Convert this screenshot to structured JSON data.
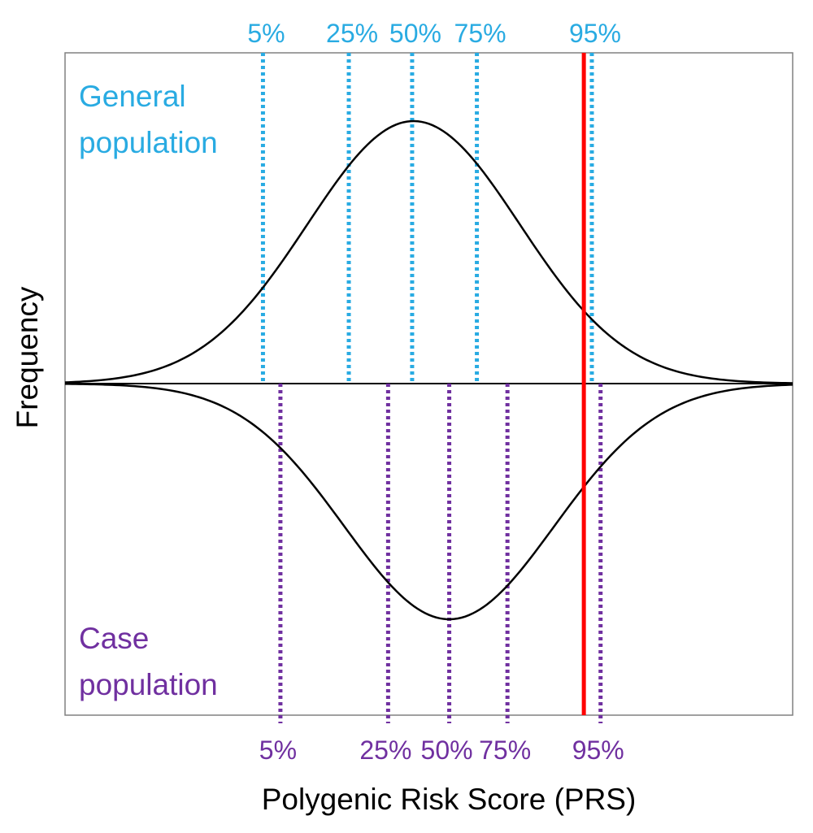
{
  "chart_data": {
    "type": "line",
    "xlabel": "Polygenic Risk Score (PRS)",
    "ylabel": "Frequency",
    "colors": {
      "general": "#29ABE2",
      "case": "#7030A0",
      "curve": "#000000",
      "threshold": "#FF0000",
      "frame": "#808080"
    },
    "xlim": [
      0,
      100
    ],
    "series": [
      {
        "name": "General population",
        "label_lines": [
          "General",
          "population"
        ],
        "mean": 47.9,
        "sd": 14.6,
        "direction": "up",
        "percentiles": [
          {
            "label": "5%",
            "x": 27.2
          },
          {
            "label": "25%",
            "x": 39.0
          },
          {
            "label": "50%",
            "x": 47.7
          },
          {
            "label": "75%",
            "x": 56.6
          },
          {
            "label": "95%",
            "x": 72.4
          }
        ]
      },
      {
        "name": "Case population",
        "label_lines": [
          "Case",
          "population"
        ],
        "mean": 52.8,
        "sd": 14.4,
        "direction": "down",
        "percentiles": [
          {
            "label": "5%",
            "x": 29.6
          },
          {
            "label": "25%",
            "x": 44.4
          },
          {
            "label": "50%",
            "x": 52.8
          },
          {
            "label": "75%",
            "x": 60.8
          },
          {
            "label": "95%",
            "x": 73.6
          }
        ]
      }
    ],
    "threshold": {
      "x": 71.3
    }
  }
}
